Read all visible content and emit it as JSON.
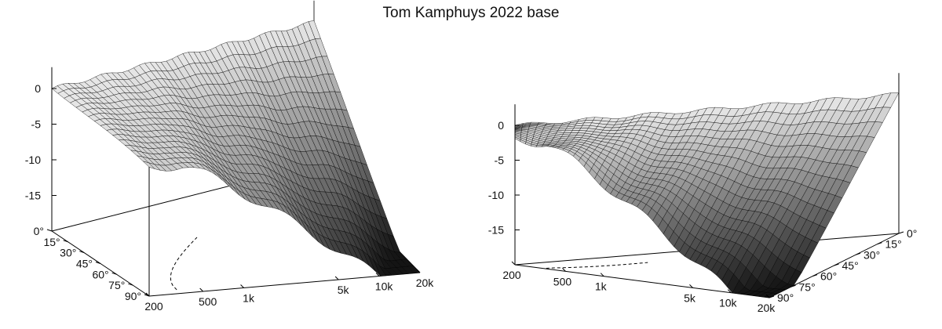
{
  "title": "Tom Kamphuys 2022 base",
  "chart_data": [
    {
      "type": "surface3d",
      "view": "left",
      "z_ticks": [
        "0",
        "-5",
        "-10",
        "-15"
      ],
      "freq_ticks": [
        "200",
        "500",
        "1k",
        "5k",
        "10k",
        "20k"
      ],
      "angle_ticks": [
        "0°",
        "15°",
        "30°",
        "45°",
        "60°",
        "75°",
        "90°"
      ],
      "freq_range_hz": [
        200,
        20000
      ],
      "angle_range_deg": [
        0,
        90
      ],
      "z_range_db": [
        -20,
        0
      ],
      "colors": {
        "light": "#f2f2f2",
        "dark": "#111111",
        "mesh": "#000000"
      }
    },
    {
      "type": "surface3d",
      "view": "right",
      "z_ticks": [
        "0",
        "-5",
        "-10",
        "-15"
      ],
      "freq_ticks": [
        "200",
        "500",
        "1k",
        "5k",
        "10k",
        "20k"
      ],
      "angle_ticks": [
        "0°",
        "15°",
        "30°",
        "45°",
        "60°",
        "75°",
        "90°"
      ],
      "freq_range_hz": [
        200,
        20000
      ],
      "angle_range_deg": [
        0,
        90
      ],
      "z_range_db": [
        -20,
        0
      ],
      "colors": {
        "light": "#f2f2f2",
        "dark": "#111111",
        "mesh": "#000000"
      }
    }
  ]
}
